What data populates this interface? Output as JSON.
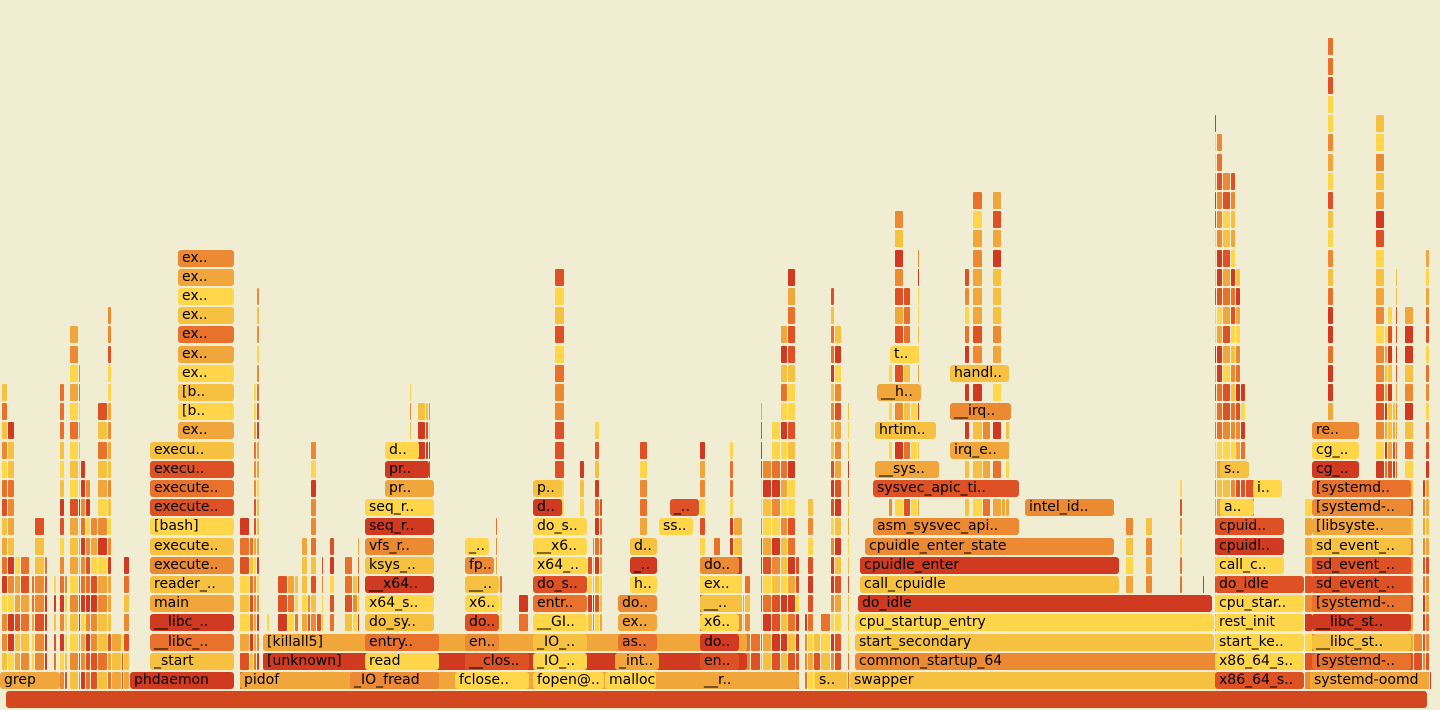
{
  "chart_data": {
    "type": "flamegraph",
    "palette": [
      "#ffd54a",
      "#f6c040",
      "#f1a63c",
      "#ec8a33",
      "#e8712c",
      "#de5125",
      "#cf3a20"
    ],
    "root_color": "#d3481f",
    "stacks": [
      {
        "frames": [
          {
            "label": "grep",
            "fill": "#f1a63c",
            "start": 0,
            "width": 61
          }
        ]
      },
      {
        "frames": [
          {
            "label": "phdaemon",
            "fill": "#cf3a20",
            "start": 130,
            "width": 105
          },
          {
            "label": "_start",
            "fill": "#f6c040",
            "start": 150,
            "width": 85
          },
          {
            "label": "__libc_..",
            "fill": "#e8712c",
            "start": 150,
            "width": 85
          },
          {
            "label": "__libc_..",
            "fill": "#cf3a20",
            "start": 150,
            "width": 85
          },
          {
            "label": "main",
            "fill": "#f1a63c",
            "start": 150,
            "width": 85
          },
          {
            "label": "reader_..",
            "fill": "#f6c040",
            "start": 150,
            "width": 85
          },
          {
            "label": "execute..",
            "fill": "#ec8a33",
            "start": 150,
            "width": 85
          },
          {
            "label": "execute..",
            "fill": "#f6c040",
            "start": 150,
            "width": 85
          },
          {
            "label": "[bash]",
            "fill": "#ffd54a",
            "start": 150,
            "width": 85
          },
          {
            "label": "execute..",
            "fill": "#de5125",
            "start": 150,
            "width": 85
          },
          {
            "label": "execute..",
            "fill": "#e8712c",
            "start": 150,
            "width": 85
          },
          {
            "label": "execu..",
            "fill": "#de5125",
            "start": 150,
            "width": 85
          },
          {
            "label": "execu..",
            "fill": "#f6c040",
            "start": 150,
            "width": 85
          },
          {
            "label": "ex..",
            "fill": "#f1a63c",
            "start": 178,
            "width": 57
          },
          {
            "label": "[b..",
            "fill": "#ffd54a",
            "start": 178,
            "width": 57
          },
          {
            "label": "[b..",
            "fill": "#f6c040",
            "start": 178,
            "width": 57
          },
          {
            "label": "ex..",
            "fill": "#ffd54a",
            "start": 178,
            "width": 57
          },
          {
            "label": "ex..",
            "fill": "#f1a63c",
            "start": 178,
            "width": 57
          },
          {
            "label": "ex..",
            "fill": "#e8712c",
            "start": 178,
            "width": 57
          },
          {
            "label": "ex..",
            "fill": "#f6c040",
            "start": 178,
            "width": 57
          },
          {
            "label": "ex..",
            "fill": "#ffd54a",
            "start": 178,
            "width": 57
          },
          {
            "label": "ex..",
            "fill": "#f1a63c",
            "start": 178,
            "width": 57
          },
          {
            "label": "ex..",
            "fill": "#ec8a33",
            "start": 178,
            "width": 57
          }
        ]
      },
      {
        "frames": [
          {
            "label": "pidof",
            "fill": "#f1a63c",
            "start": 240,
            "width": 560
          },
          {
            "label": "[unknown]",
            "fill": "#cf3a20",
            "start": 263,
            "width": 485
          },
          {
            "label": "[killall5]",
            "fill": "#f1a63c",
            "start": 263,
            "width": 485
          }
        ]
      },
      {
        "frames": [
          {
            "label": "_IO_fread",
            "fill": "#ec8a33",
            "start": 350,
            "width": 90
          },
          {
            "label": "read",
            "fill": "#ffd54a",
            "start": 365,
            "width": 75
          },
          {
            "label": "entry..",
            "fill": "#e8712c",
            "start": 365,
            "width": 75
          },
          {
            "label": "do_sy..",
            "fill": "#f6c040",
            "start": 365,
            "width": 70
          },
          {
            "label": "x64_s..",
            "fill": "#ffd54a",
            "start": 365,
            "width": 70
          },
          {
            "label": "__x64..",
            "fill": "#cf3a20",
            "start": 365,
            "width": 70
          },
          {
            "label": "ksys_..",
            "fill": "#f6c040",
            "start": 365,
            "width": 70
          },
          {
            "label": "vfs_r..",
            "fill": "#ec8a33",
            "start": 365,
            "width": 70
          },
          {
            "label": "seq_r..",
            "fill": "#cf3a20",
            "start": 365,
            "width": 70
          },
          {
            "label": "seq_r..",
            "fill": "#ffd54a",
            "start": 365,
            "width": 70
          },
          {
            "label": "pr..",
            "fill": "#f1a63c",
            "start": 385,
            "width": 50
          },
          {
            "label": "pr..",
            "fill": "#cf3a20",
            "start": 385,
            "width": 45
          },
          {
            "label": "d..",
            "fill": "#ffd54a",
            "start": 385,
            "width": 35
          }
        ]
      },
      {
        "frames": [
          {
            "label": "fclose..",
            "fill": "#ffd54a",
            "start": 455,
            "width": 75
          },
          {
            "label": "__clos..",
            "fill": "#de5125",
            "start": 465,
            "width": 65
          },
          {
            "label": "en..",
            "fill": "#ec8a33",
            "start": 465,
            "width": 35
          },
          {
            "label": "do..",
            "fill": "#de5125",
            "start": 465,
            "width": 35
          },
          {
            "label": "x6..",
            "fill": "#ffd54a",
            "start": 465,
            "width": 35
          },
          {
            "label": "__..",
            "fill": "#f6c040",
            "start": 465,
            "width": 35
          },
          {
            "label": "fp..",
            "fill": "#ec8a33",
            "start": 465,
            "width": 30
          },
          {
            "label": "_..",
            "fill": "#ffd54a",
            "start": 465,
            "width": 25
          }
        ]
      },
      {
        "frames": [
          {
            "label": "fopen@..",
            "fill": "#ffd54a",
            "start": 533,
            "width": 72
          },
          {
            "label": "_IO_..",
            "fill": "#ffd54a",
            "start": 533,
            "width": 55
          },
          {
            "label": "_IO_..",
            "fill": "#f6c040",
            "start": 533,
            "width": 55
          },
          {
            "label": "__GI..",
            "fill": "#ffd54a",
            "start": 533,
            "width": 55
          },
          {
            "label": "entr..",
            "fill": "#e8712c",
            "start": 533,
            "width": 55
          },
          {
            "label": "do_s..",
            "fill": "#de5125",
            "start": 533,
            "width": 55
          },
          {
            "label": "x64_..",
            "fill": "#ffd54a",
            "start": 533,
            "width": 55
          },
          {
            "label": "__x6..",
            "fill": "#ffd54a",
            "start": 533,
            "width": 55
          },
          {
            "label": "do_s..",
            "fill": "#ffd54a",
            "start": 533,
            "width": 55
          },
          {
            "label": "d..",
            "fill": "#cf3a20",
            "start": 533,
            "width": 30
          },
          {
            "label": "p..",
            "fill": "#f6c040",
            "start": 533,
            "width": 30
          }
        ]
      },
      {
        "frames": [
          {
            "label": "malloc",
            "fill": "#ffd54a",
            "start": 605,
            "width": 52
          },
          {
            "label": "_int..",
            "fill": "#f1a63c",
            "start": 615,
            "width": 45
          },
          {
            "label": "as..",
            "fill": "#e8712c",
            "start": 618,
            "width": 40
          },
          {
            "label": "ex..",
            "fill": "#f1a63c",
            "start": 618,
            "width": 40
          },
          {
            "label": "do..",
            "fill": "#ec8a33",
            "start": 618,
            "width": 40
          },
          {
            "label": "h..",
            "fill": "#ffd54a",
            "start": 630,
            "width": 28
          },
          {
            "label": "_..",
            "fill": "#cf3a20",
            "start": 630,
            "width": 28
          },
          {
            "label": "d..",
            "fill": "#f6c040",
            "start": 630,
            "width": 28
          },
          {
            "label": "ss..",
            "fill": "#ffd54a",
            "start": 659,
            "width": 35
          },
          {
            "label": "_..",
            "fill": "#de5125",
            "start": 670,
            "width": 30
          }
        ]
      },
      {
        "frames": [
          {
            "label": "__r..",
            "fill": "#f1a63c",
            "start": 700,
            "width": 40
          },
          {
            "label": "en..",
            "fill": "#de5125",
            "start": 700,
            "width": 40
          },
          {
            "label": "do..",
            "fill": "#cf3a20",
            "start": 700,
            "width": 40
          },
          {
            "label": "x6..",
            "fill": "#ffd54a",
            "start": 700,
            "width": 40
          },
          {
            "label": "__..",
            "fill": "#f6c040",
            "start": 700,
            "width": 40
          },
          {
            "label": "ex..",
            "fill": "#ffd54a",
            "start": 700,
            "width": 40
          },
          {
            "label": "do..",
            "fill": "#ec8a33",
            "start": 700,
            "width": 40
          }
        ]
      },
      {
        "frames": [
          {
            "label": "s..",
            "fill": "#f6c040",
            "start": 815,
            "width": 30
          }
        ]
      },
      {
        "frames": [
          {
            "label": "swapper",
            "fill": "#f6c040",
            "start": 850,
            "width": 455
          },
          {
            "label": "common_startup_64",
            "fill": "#ec8a33",
            "start": 855,
            "width": 450
          },
          {
            "label": "start_secondary",
            "fill": "#f6c040",
            "start": 855,
            "width": 360
          },
          {
            "label": "cpu_startup_entry",
            "fill": "#ffd54a",
            "start": 855,
            "width": 360
          },
          {
            "label": "do_idle",
            "fill": "#cf3a20",
            "start": 858,
            "width": 355
          },
          {
            "label": "call_cpuidle",
            "fill": "#f6c040",
            "start": 860,
            "width": 260
          },
          {
            "label": "cpuidle_enter",
            "fill": "#cf3a20",
            "start": 860,
            "width": 260
          },
          {
            "label": "cpuidle_enter_state",
            "fill": "#ec8a33",
            "start": 865,
            "width": 250
          },
          {
            "label": "asm_sysvec_api..",
            "fill": "#ec8a33",
            "start": 873,
            "width": 147
          },
          {
            "label": "intel_id..",
            "fill": "#ec8a33",
            "start": 1025,
            "width": 90
          },
          {
            "label": "sysvec_apic_ti..",
            "fill": "#de5125",
            "start": 873,
            "width": 147
          },
          {
            "label": "__sys..",
            "fill": "#f1a63c",
            "start": 875,
            "width": 65
          },
          {
            "label": "irq_e..",
            "fill": "#f1a63c",
            "start": 950,
            "width": 60
          },
          {
            "label": "hrtim..",
            "fill": "#f6c040",
            "start": 875,
            "width": 62
          },
          {
            "label": "__irq..",
            "fill": "#ec8a33",
            "start": 950,
            "width": 62
          },
          {
            "label": "__h..",
            "fill": "#f1a63c",
            "start": 877,
            "width": 45
          },
          {
            "label": "handl..",
            "fill": "#f6c040",
            "start": 950,
            "width": 60
          },
          {
            "label": "t..",
            "fill": "#ffd54a",
            "start": 890,
            "width": 30
          }
        ]
      },
      {
        "frames": [
          {
            "label": "x86_64_s..",
            "fill": "#de5125",
            "start": 1215,
            "width": 90
          },
          {
            "label": "x86_64_s..",
            "fill": "#ffd54a",
            "start": 1215,
            "width": 90
          },
          {
            "label": "start_ke..",
            "fill": "#ffd54a",
            "start": 1215,
            "width": 90
          },
          {
            "label": "rest_init",
            "fill": "#ffd54a",
            "start": 1215,
            "width": 90
          },
          {
            "label": "cpu_star..",
            "fill": "#ffd54a",
            "start": 1215,
            "width": 90
          },
          {
            "label": "do_idle",
            "fill": "#de5125",
            "start": 1215,
            "width": 90
          },
          {
            "label": "call_c..",
            "fill": "#ffd54a",
            "start": 1215,
            "width": 70
          },
          {
            "label": "cpuidl..",
            "fill": "#cf3a20",
            "start": 1215,
            "width": 70
          },
          {
            "label": "cpuid..",
            "fill": "#de5125",
            "start": 1215,
            "width": 70
          },
          {
            "label": "a..",
            "fill": "#ffd54a",
            "start": 1220,
            "width": 35
          },
          {
            "label": "i..",
            "fill": "#ffd54a",
            "start": 1253,
            "width": 30
          },
          {
            "label": "s..",
            "fill": "#f6c040",
            "start": 1220,
            "width": 30
          }
        ]
      },
      {
        "frames": [
          {
            "label": "systemd-oomd",
            "fill": "#f1a63c",
            "start": 1310,
            "width": 120
          },
          {
            "label": "[systemd-..",
            "fill": "#e8712c",
            "start": 1312,
            "width": 100
          },
          {
            "label": "__libc_st..",
            "fill": "#f6c040",
            "start": 1312,
            "width": 100
          },
          {
            "label": "__libc_st..",
            "fill": "#cf3a20",
            "start": 1312,
            "width": 100
          },
          {
            "label": "[systemd-..",
            "fill": "#e8712c",
            "start": 1312,
            "width": 100
          },
          {
            "label": "sd_event_..",
            "fill": "#de5125",
            "start": 1312,
            "width": 100
          },
          {
            "label": "sd_event_..",
            "fill": "#de5125",
            "start": 1312,
            "width": 100
          },
          {
            "label": "sd_event_..",
            "fill": "#f6c040",
            "start": 1312,
            "width": 100
          },
          {
            "label": "[libsyste..",
            "fill": "#f1a63c",
            "start": 1312,
            "width": 100
          },
          {
            "label": "[systemd-..",
            "fill": "#ec8a33",
            "start": 1312,
            "width": 100
          },
          {
            "label": "[systemd..",
            "fill": "#e8712c",
            "start": 1312,
            "width": 100
          },
          {
            "label": "cg_..",
            "fill": "#cf3a20",
            "start": 1312,
            "width": 48
          },
          {
            "label": "cg_..",
            "fill": "#ffd54a",
            "start": 1312,
            "width": 48
          },
          {
            "label": "re..",
            "fill": "#ec8a33",
            "start": 1312,
            "width": 48
          }
        ]
      }
    ],
    "small_stacks": [
      {
        "start": 2,
        "width": 28,
        "depth": 28
      },
      {
        "start": 32,
        "width": 25,
        "depth": 25
      },
      {
        "start": 60,
        "width": 8,
        "depth": 26
      },
      {
        "start": 70,
        "width": 60,
        "depth": 22
      },
      {
        "start": 240,
        "width": 20,
        "depth": 22
      },
      {
        "start": 263,
        "width": 38,
        "depth": 6
      },
      {
        "start": 302,
        "width": 25,
        "depth": 14
      },
      {
        "start": 330,
        "width": 15,
        "depth": 13
      },
      {
        "start": 345,
        "width": 20,
        "depth": 8
      },
      {
        "start": 410,
        "width": 20,
        "depth": 21
      },
      {
        "start": 485,
        "width": 12,
        "depth": 14
      },
      {
        "start": 500,
        "width": 30,
        "depth": 6
      },
      {
        "start": 555,
        "width": 30,
        "depth": 22
      },
      {
        "start": 588,
        "width": 15,
        "depth": 17
      },
      {
        "start": 640,
        "width": 15,
        "depth": 18
      },
      {
        "start": 700,
        "width": 45,
        "depth": 13
      },
      {
        "start": 745,
        "width": 55,
        "depth": 24
      },
      {
        "start": 805,
        "width": 45,
        "depth": 25
      },
      {
        "start": 880,
        "width": 40,
        "depth": 26
      },
      {
        "start": 960,
        "width": 50,
        "depth": 30
      },
      {
        "start": 1115,
        "width": 90,
        "depth": 11
      },
      {
        "start": 1215,
        "width": 45,
        "depth": 36
      },
      {
        "start": 1305,
        "width": 8,
        "depth": 10
      },
      {
        "start": 1312,
        "width": 120,
        "depth": 36
      }
    ]
  }
}
